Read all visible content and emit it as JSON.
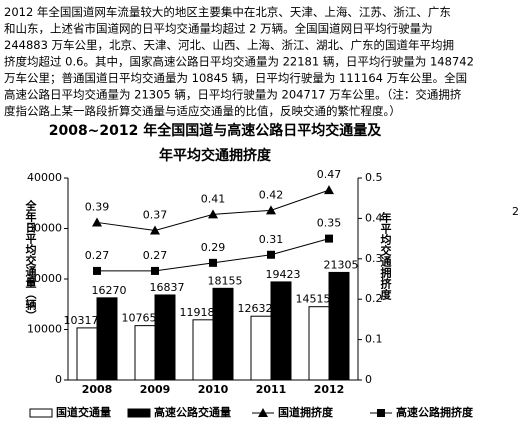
{
  "paragraph": [
    "2012 年全国国道网车流量较大的地区主要集中在北京、天津、上海、江苏、浙江、广东",
    "和山东，上述省市国道网的日平均交通量均超过 2 万辆。全国国道网日平均行驶量为",
    "244883 万车公里，北京、天津、河北、山西、上海、浙江、湖北、广东的国道年平均拥",
    "挤度均超过 0.6。其中，国家高速公路日平均交通量为 22181 辆，日平均行驶量为 148742",
    "万车公里；普通国道日平均交通量为 10845 辆，日平均行驶量为 111164 万车公里。全国",
    "高速公路日平均交通量为 21305 辆，日平均行驶量为 204717 万车公里。（注：交通拥挤",
    "度指公路上某一路段折算交通量与适应交通量的比值，反映交通的繁忙程度。）"
  ],
  "margin_note": "2",
  "chart_data": {
    "type": "bar-line",
    "title": [
      "2008~2012 年全国国道与高速公路日平均交通量及",
      "年平均交通拥挤度"
    ],
    "ylabel": "全年日平均交通量（辆）",
    "y2label": "年平均交通拥挤度",
    "categories": [
      "2008",
      "2009",
      "2010",
      "2011",
      "2012"
    ],
    "ylim": [
      0,
      40000
    ],
    "yticks": [
      0,
      10000,
      20000,
      30000,
      40000
    ],
    "y2lim": [
      0,
      0.5
    ],
    "y2ticks": [
      0,
      0.1,
      0.2,
      0.3,
      0.4,
      0.5
    ],
    "series": [
      {
        "name": "国道交通量",
        "kind": "bar",
        "color": "#ffffff",
        "values": [
          10317,
          10765,
          11918,
          12632,
          14515
        ]
      },
      {
        "name": "高速公路交通量",
        "kind": "bar",
        "color": "#000000",
        "values": [
          16270,
          16837,
          18155,
          19423,
          21305
        ]
      },
      {
        "name": "国道拥挤度",
        "kind": "line",
        "marker": "triangle",
        "axis": "y2",
        "color": "#000000",
        "values": [
          0.39,
          0.37,
          0.41,
          0.42,
          0.47
        ]
      },
      {
        "name": "高速公路拥挤度",
        "kind": "line",
        "marker": "square",
        "axis": "y2",
        "color": "#000000",
        "values": [
          0.27,
          0.27,
          0.29,
          0.31,
          0.35
        ]
      }
    ]
  }
}
